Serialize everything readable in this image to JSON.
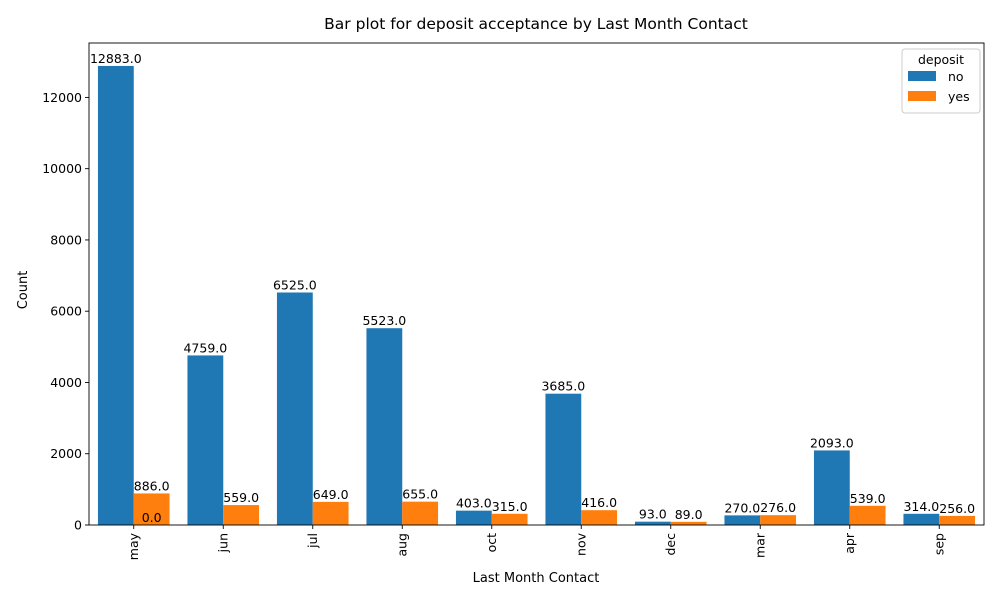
{
  "chart_data": {
    "type": "bar",
    "title": "Bar plot for deposit acceptance by Last Month Contact",
    "xlabel": "Last Month Contact",
    "ylabel": "Count",
    "categories": [
      "may",
      "jun",
      "jul",
      "aug",
      "oct",
      "nov",
      "dec",
      "mar",
      "apr",
      "sep"
    ],
    "series": [
      {
        "name": "no",
        "color": "#1f77b4",
        "values": [
          12883,
          4759,
          6525,
          5523,
          403,
          3685,
          93,
          270,
          2093,
          314
        ]
      },
      {
        "name": "yes",
        "color": "#ff7f0e",
        "values": [
          886,
          559,
          649,
          655,
          315,
          416,
          89,
          276,
          539,
          256
        ]
      }
    ],
    "data_labels": {
      "no": [
        "12883.0",
        "4759.0",
        "6525.0",
        "5523.0",
        "403.0",
        "3685.0",
        "93.0",
        "270.0",
        "2093.0",
        "314.0"
      ],
      "yes": [
        "886.0",
        "559.0",
        "649.0",
        "655.0",
        "315.0",
        "416.0",
        "89.0",
        "276.0",
        "539.0",
        "256.0"
      ]
    },
    "extra_label": "0.0",
    "ylim": [
      0,
      13527
    ],
    "yticks": [
      0,
      2000,
      4000,
      6000,
      8000,
      10000,
      12000
    ],
    "ytick_labels": [
      "0",
      "2000",
      "4000",
      "6000",
      "8000",
      "10000",
      "12000"
    ],
    "legend": {
      "title": "deposit",
      "position": "top-right"
    },
    "grid": false
  }
}
